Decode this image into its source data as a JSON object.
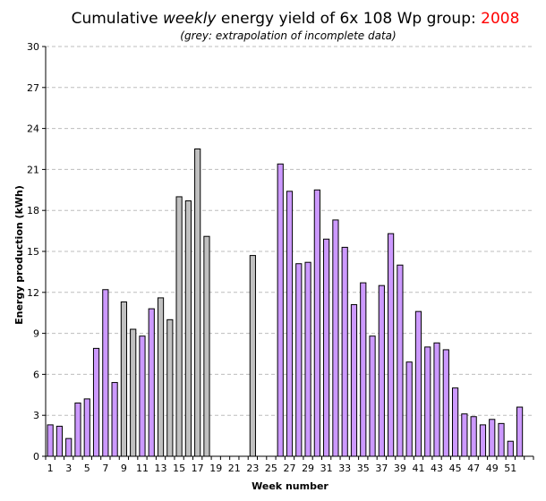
{
  "chart_data": {
    "type": "bar",
    "title": {
      "prefix": "Cumulative ",
      "emphasis": "weekly",
      "middle": " energy yield of 6x 108 Wp group: ",
      "year": "2008"
    },
    "subtitle": "(grey: extrapolation of incomplete data)",
    "xlabel": "Week number",
    "ylabel": "Energy production (kWh)",
    "ylim": [
      0,
      30
    ],
    "yticks": [
      0,
      3,
      6,
      9,
      12,
      15,
      18,
      21,
      24,
      27,
      30
    ],
    "xtick_labels": [
      "1",
      "3",
      "5",
      "7",
      "9",
      "11",
      "13",
      "15",
      "17",
      "19",
      "21",
      "23",
      "25",
      "27",
      "29",
      "31",
      "33",
      "35",
      "37",
      "39",
      "41",
      "43",
      "45",
      "47",
      "49",
      "51"
    ],
    "grid": true,
    "colors": {
      "complete": "#cc99ff",
      "extrapolated": "#c0c0c0",
      "year": "#ff0000"
    },
    "categories": [
      1,
      2,
      3,
      4,
      5,
      6,
      7,
      8,
      9,
      10,
      11,
      12,
      13,
      14,
      15,
      16,
      17,
      18,
      19,
      20,
      21,
      22,
      23,
      24,
      25,
      26,
      27,
      28,
      29,
      30,
      31,
      32,
      33,
      34,
      35,
      36,
      37,
      38,
      39,
      40,
      41,
      42,
      43,
      44,
      45,
      46,
      47,
      48,
      49,
      50,
      51,
      52,
      53
    ],
    "values": [
      2.3,
      2.2,
      1.3,
      3.9,
      4.2,
      7.9,
      12.2,
      5.4,
      11.3,
      9.3,
      8.8,
      10.8,
      11.6,
      10.0,
      19.0,
      18.7,
      22.5,
      16.1,
      0,
      0,
      0,
      0,
      14.7,
      0,
      0,
      21.4,
      19.4,
      14.1,
      14.2,
      19.5,
      15.9,
      17.3,
      15.3,
      11.1,
      12.7,
      8.8,
      12.5,
      16.3,
      14.0,
      6.9,
      10.6,
      8.0,
      8.3,
      7.8,
      5.0,
      3.1,
      2.9,
      2.3,
      2.7,
      2.4,
      1.1,
      3.6,
      0
    ],
    "status": [
      "c",
      "c",
      "c",
      "c",
      "c",
      "c",
      "c",
      "c",
      "e",
      "e",
      "c",
      "c",
      "e",
      "e",
      "e",
      "e",
      "e",
      "e",
      "",
      "",
      "",
      "",
      "e",
      "",
      "",
      "c",
      "c",
      "c",
      "c",
      "c",
      "c",
      "c",
      "c",
      "c",
      "c",
      "c",
      "c",
      "c",
      "c",
      "c",
      "c",
      "c",
      "c",
      "c",
      "c",
      "c",
      "c",
      "c",
      "c",
      "c",
      "c",
      "c",
      ""
    ]
  }
}
